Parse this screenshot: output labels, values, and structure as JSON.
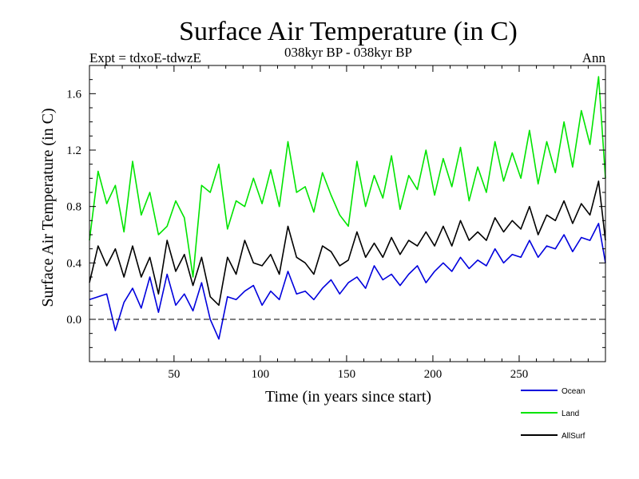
{
  "chart_data": {
    "type": "line",
    "title": "Surface Air Temperature (in C)",
    "subtitle": "038kyr BP - 038kyr BP",
    "expt_label": "Expt = tdxoE-tdwzE",
    "period_label": "Ann",
    "xlabel": "Time (in years since start)",
    "ylabel": "Surface Air Temperature (in C)",
    "xlim": [
      1,
      300
    ],
    "ylim": [
      -0.3,
      1.8
    ],
    "x_ticks": [
      50,
      100,
      150,
      200,
      250
    ],
    "y_ticks": [
      0.0,
      0.4,
      0.8,
      1.2,
      1.6
    ],
    "x_tick_labels": [
      "50",
      "100",
      "150",
      "200",
      "250"
    ],
    "y_tick_labels": [
      "0.0",
      "0.4",
      "0.8",
      "1.2",
      "1.6"
    ],
    "reference_line": {
      "y": 0.0,
      "style": "dashed"
    },
    "grid": false,
    "legend_position": "bottom-right",
    "x_step": 5,
    "series": [
      {
        "name": "Ocean",
        "color": "#0000dd",
        "values": [
          0.14,
          0.16,
          0.18,
          -0.08,
          0.12,
          0.22,
          0.08,
          0.3,
          0.05,
          0.32,
          0.1,
          0.18,
          0.06,
          0.26,
          0.0,
          -0.14,
          0.16,
          0.14,
          0.2,
          0.24,
          0.1,
          0.2,
          0.14,
          0.34,
          0.18,
          0.2,
          0.14,
          0.22,
          0.28,
          0.18,
          0.26,
          0.3,
          0.22,
          0.38,
          0.28,
          0.32,
          0.24,
          0.32,
          0.38,
          0.26,
          0.34,
          0.4,
          0.34,
          0.44,
          0.36,
          0.42,
          0.38,
          0.5,
          0.4,
          0.46,
          0.44,
          0.56,
          0.44,
          0.52,
          0.5,
          0.6,
          0.48,
          0.58,
          0.56,
          0.68,
          0.4
        ]
      },
      {
        "name": "Land",
        "color": "#00e400",
        "values": [
          0.56,
          1.05,
          0.82,
          0.95,
          0.62,
          1.12,
          0.74,
          0.9,
          0.6,
          0.66,
          0.84,
          0.72,
          0.3,
          0.95,
          0.9,
          1.1,
          0.64,
          0.84,
          0.8,
          1.0,
          0.82,
          1.06,
          0.8,
          1.26,
          0.9,
          0.94,
          0.76,
          1.04,
          0.88,
          0.74,
          0.66,
          1.12,
          0.8,
          1.02,
          0.86,
          1.16,
          0.78,
          1.02,
          0.92,
          1.2,
          0.88,
          1.14,
          0.94,
          1.22,
          0.84,
          1.08,
          0.9,
          1.26,
          0.98,
          1.18,
          1.0,
          1.34,
          0.96,
          1.26,
          1.04,
          1.4,
          1.08,
          1.48,
          1.24,
          1.72,
          1.0
        ]
      },
      {
        "name": "AllSurf",
        "color": "#000000",
        "values": [
          0.26,
          0.52,
          0.38,
          0.5,
          0.3,
          0.52,
          0.3,
          0.44,
          0.18,
          0.56,
          0.34,
          0.46,
          0.24,
          0.44,
          0.16,
          0.1,
          0.44,
          0.32,
          0.56,
          0.4,
          0.38,
          0.46,
          0.32,
          0.66,
          0.44,
          0.4,
          0.32,
          0.52,
          0.48,
          0.38,
          0.42,
          0.62,
          0.44,
          0.54,
          0.44,
          0.58,
          0.46,
          0.56,
          0.52,
          0.62,
          0.52,
          0.66,
          0.52,
          0.7,
          0.56,
          0.62,
          0.56,
          0.72,
          0.62,
          0.7,
          0.64,
          0.8,
          0.6,
          0.74,
          0.7,
          0.84,
          0.68,
          0.82,
          0.74,
          0.98,
          0.56
        ]
      }
    ]
  }
}
